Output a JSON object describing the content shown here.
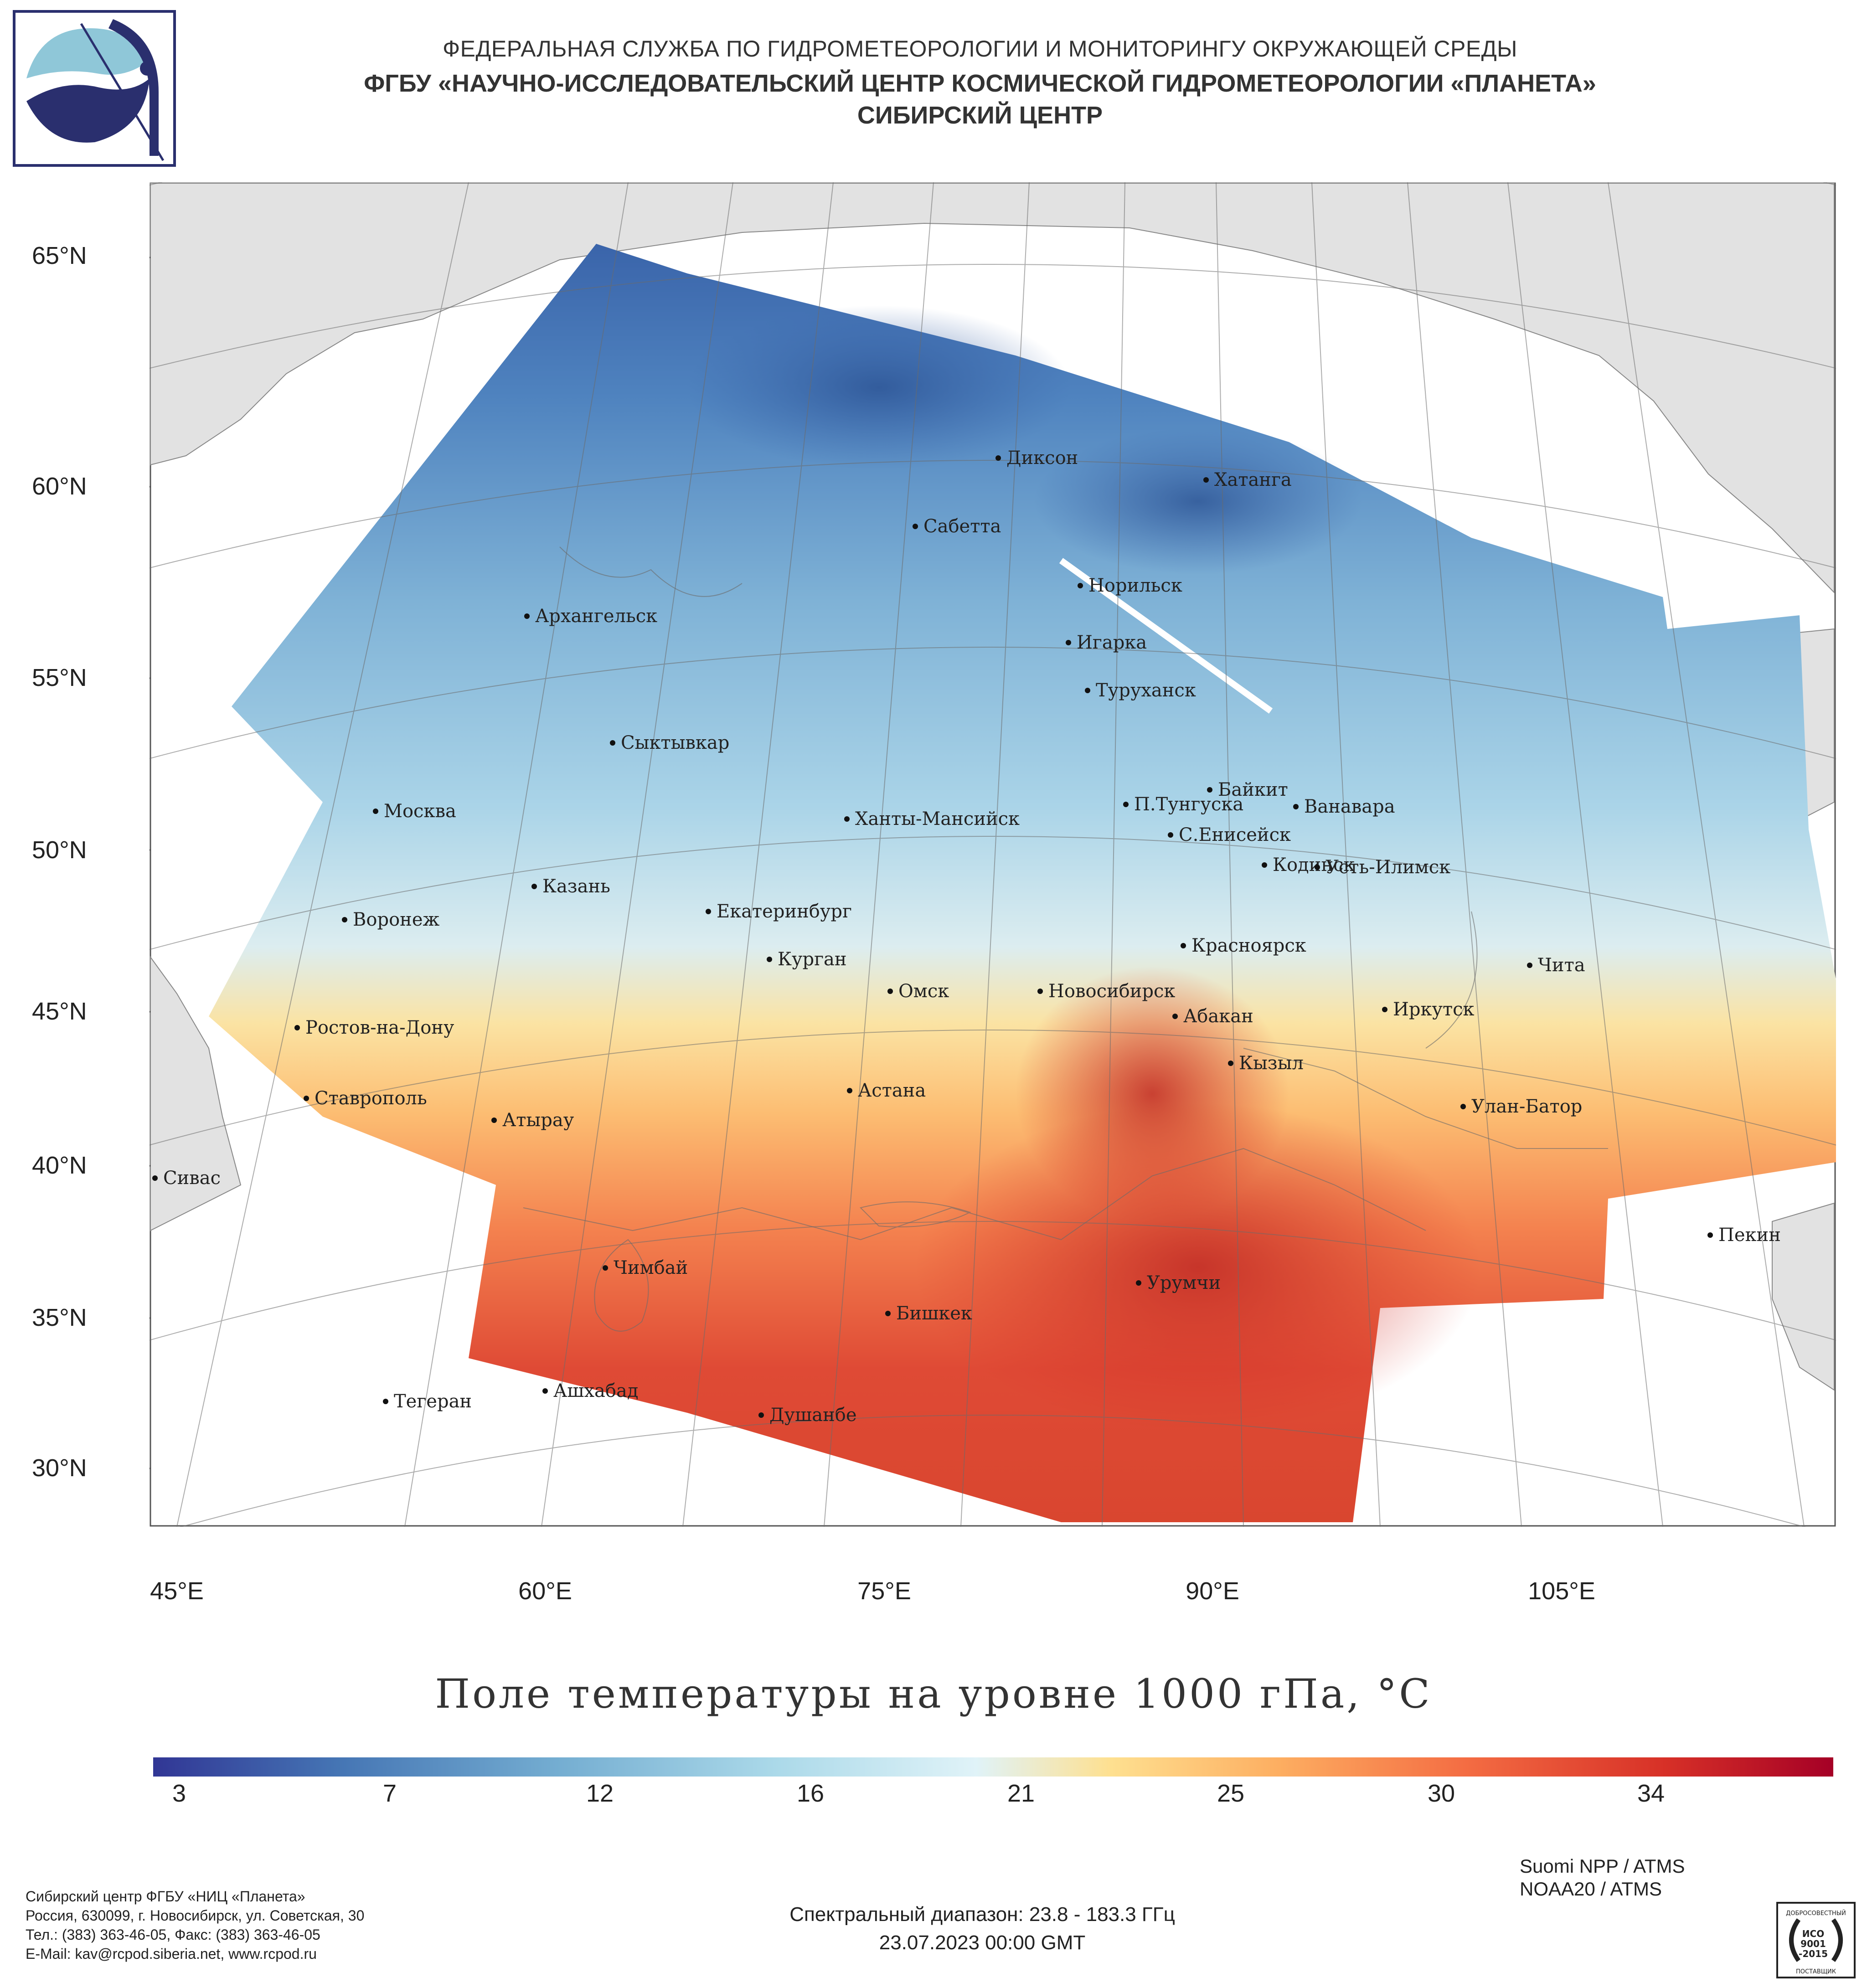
{
  "header": {
    "line1": "ФЕДЕРАЛЬНАЯ СЛУЖБА ПО ГИДРОМЕТЕОРОЛОГИИ И МОНИТОРИНГУ ОКРУЖАЮЩЕЙ СРЕДЫ",
    "line2": "ФГБУ «НАУЧНО-ИССЛЕДОВАТЕЛЬСКИЙ ЦЕНТР КОСМИЧЕСКОЙ ГИДРОМЕТЕОРОЛОГИИ «ПЛАНЕТА»",
    "line3": "СИБИРСКИЙ ЦЕНТР"
  },
  "map": {
    "lat_labels": [
      "65°N",
      "60°N",
      "55°N",
      "50°N",
      "45°N",
      "40°N",
      "35°N",
      "30°N"
    ],
    "lon_labels": [
      "45°E",
      "60°E",
      "75°E",
      "90°E",
      "105°E"
    ],
    "cities": {
      "dikson": "Диксон",
      "khatanga": "Хатанга",
      "sabetta": "Сабетта",
      "norilsk": "Норильск",
      "arkhangelsk": "Архангельск",
      "igarka": "Игарка",
      "turukhansk": "Туруханск",
      "syktyvkar": "Сыктывкар",
      "baykit": "Байкит",
      "tunguska": "П.Тунгуска",
      "vanavara": "Ванавара",
      "moskva": "Москва",
      "khanty": "Ханты-Мансийск",
      "yeniseysk": "С.Енисейск",
      "kodinsk": "Кодинск",
      "ust_ilimsk": "Усть-Илимск",
      "kazan": "Казань",
      "voronezh": "Воронеж",
      "yekaterinburg": "Екатеринбург",
      "krasnoyarsk": "Красноярск",
      "kurgan": "Курган",
      "chita": "Чита",
      "omsk": "Омск",
      "novosibirsk": "Новосибирск",
      "rostov": "Ростов-на-Дону",
      "irkutsk": "Иркутск",
      "abakan": "Абакан",
      "kyzyl": "Кызыл",
      "astana": "Астана",
      "stavropol": "Ставрополь",
      "ulanbator": "Улан-Батор",
      "atyrau": "Атырау",
      "sivas": "Сивас",
      "pekin": "Пекин",
      "chimbay": "Чимбай",
      "urumchi": "Урумчи",
      "bishkek": "Бишкек",
      "ashgabat": "Ашхабад",
      "tegeran": "Тегеран",
      "dushanbe": "Душанбе"
    }
  },
  "title": "Поле температуры на уровне 1000 гПа, °C",
  "colorbar": {
    "ticks": [
      "3",
      "7",
      "12",
      "16",
      "21",
      "25",
      "30",
      "34"
    ],
    "colors": [
      "#313695",
      "#4575b4",
      "#74add1",
      "#abd9e9",
      "#e0f3f8",
      "#fee090",
      "#fdae61",
      "#f46d43",
      "#d73027",
      "#a50026"
    ]
  },
  "footer": {
    "org": "Сибирский центр ФГБУ «НИЦ «Планета»",
    "address": "Россия, 630099, г. Новосибирск, ул. Советская, 30",
    "phone": "Тел.: (383) 363-46-05, Факс: (383) 363-46-05",
    "email": "E-Mail: kav@rcpod.siberia.net, www.rcpod.ru",
    "spectral": "Спектральный диапазон: 23.8 - 183.3 ГГц",
    "datetime": "23.07.2023 00:00 GMT",
    "sat1": "Suomi NPP / ATMS",
    "sat2": "NOAA20 / ATMS",
    "iso_top": "ДОБРОСОВЕСТНЫЙ",
    "iso_mid1": "ИСО",
    "iso_mid2": "9001",
    "iso_mid3": "-2015",
    "iso_bottom": "ПОСТАВЩИК"
  }
}
